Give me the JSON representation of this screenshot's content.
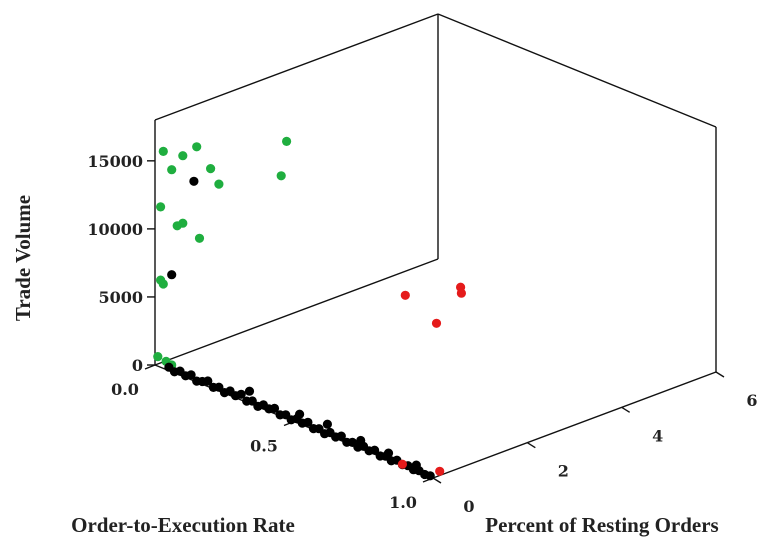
{
  "chart_data": {
    "type": "scatter",
    "title": "",
    "axes": {
      "x": {
        "label": "Order-to-Execution Rate",
        "range": [
          0.0,
          1.0
        ],
        "ticks": [
          "0.0",
          "0.5",
          "1.0"
        ]
      },
      "y": {
        "label": "Percent of Resting Orders",
        "range": [
          0,
          6
        ],
        "ticks": [
          "0",
          "2",
          "4",
          "6"
        ]
      },
      "z": {
        "label": "Trade Volume",
        "range": [
          0,
          18000
        ],
        "ticks": [
          "0",
          "5000",
          "10000",
          "15000"
        ]
      }
    },
    "grid": false,
    "legend": "none",
    "series": [
      {
        "color": "#1fae3f",
        "points": [
          {
            "x": 0.03,
            "y": 0.0,
            "z": 15940
          },
          {
            "x": 0.1,
            "y": 0.0,
            "z": 16210
          },
          {
            "x": 0.06,
            "y": 0.0,
            "z": 14850
          },
          {
            "x": 0.15,
            "y": 0.0,
            "z": 17280
          },
          {
            "x": 0.2,
            "y": 0.0,
            "z": 16090
          },
          {
            "x": 0.23,
            "y": 0.0,
            "z": 15200
          },
          {
            "x": 0.42,
            "y": 0.2,
            "z": 17130
          },
          {
            "x": 0.02,
            "y": 0.0,
            "z": 11780
          },
          {
            "x": 0.1,
            "y": 0.0,
            "z": 11250
          },
          {
            "x": 0.08,
            "y": 0.0,
            "z": 10890
          },
          {
            "x": 0.16,
            "y": 0.0,
            "z": 10640
          },
          {
            "x": 0.02,
            "y": 0.0,
            "z": 6400
          },
          {
            "x": 0.03,
            "y": 0.0,
            "z": 6200
          },
          {
            "x": 0.1,
            "y": 2.2,
            "z": 14400
          },
          {
            "x": 0.01,
            "y": 0.0,
            "z": 700
          },
          {
            "x": 0.04,
            "y": 0.0,
            "z": 600
          },
          {
            "x": 0.06,
            "y": 0.0,
            "z": 500
          }
        ]
      },
      {
        "color": "#000000",
        "points": [
          {
            "x": 0.14,
            "y": 0.0,
            "z": 14660
          },
          {
            "x": 0.06,
            "y": 0.0,
            "z": 7130
          },
          {
            "x": 0.05,
            "y": 0.0,
            "z": 250
          },
          {
            "x": 0.07,
            "y": 0.0,
            "z": 80
          },
          {
            "x": 0.09,
            "y": 0.0,
            "z": 300
          },
          {
            "x": 0.11,
            "y": 0.0,
            "z": 120
          },
          {
            "x": 0.13,
            "y": 0.0,
            "z": 350
          },
          {
            "x": 0.15,
            "y": 0.0,
            "z": 60
          },
          {
            "x": 0.17,
            "y": 0.0,
            "z": 200
          },
          {
            "x": 0.19,
            "y": 0.0,
            "z": 400
          },
          {
            "x": 0.21,
            "y": 0.0,
            "z": 100
          },
          {
            "x": 0.23,
            "y": 0.0,
            "z": 280
          },
          {
            "x": 0.25,
            "y": 0.0,
            "z": 50
          },
          {
            "x": 0.27,
            "y": 0.0,
            "z": 330
          },
          {
            "x": 0.29,
            "y": 0.0,
            "z": 150
          },
          {
            "x": 0.31,
            "y": 0.0,
            "z": 420
          },
          {
            "x": 0.33,
            "y": 0.0,
            "z": 90
          },
          {
            "x": 0.35,
            "y": 0.0,
            "z": 260
          },
          {
            "x": 0.37,
            "y": 0.0,
            "z": 30
          },
          {
            "x": 0.39,
            "y": 0.0,
            "z": 310
          },
          {
            "x": 0.41,
            "y": 0.0,
            "z": 180
          },
          {
            "x": 0.43,
            "y": 0.0,
            "z": 380
          },
          {
            "x": 0.45,
            "y": 0.0,
            "z": 70
          },
          {
            "x": 0.47,
            "y": 0.0,
            "z": 240
          },
          {
            "x": 0.49,
            "y": 0.0,
            "z": 40
          },
          {
            "x": 0.51,
            "y": 0.0,
            "z": 290
          },
          {
            "x": 0.53,
            "y": 0.0,
            "z": 130
          },
          {
            "x": 0.55,
            "y": 0.0,
            "z": 360
          },
          {
            "x": 0.57,
            "y": 0.0,
            "z": 60
          },
          {
            "x": 0.59,
            "y": 0.0,
            "z": 220
          },
          {
            "x": 0.61,
            "y": 0.0,
            "z": 20
          },
          {
            "x": 0.63,
            "y": 0.0,
            "z": 270
          },
          {
            "x": 0.65,
            "y": 0.0,
            "z": 110
          },
          {
            "x": 0.67,
            "y": 0.0,
            "z": 340
          },
          {
            "x": 0.69,
            "y": 0.0,
            "z": 50
          },
          {
            "x": 0.71,
            "y": 0.0,
            "z": 210
          },
          {
            "x": 0.73,
            "y": 0.0,
            "z": 30
          },
          {
            "x": 0.75,
            "y": 0.0,
            "z": 250
          },
          {
            "x": 0.77,
            "y": 0.0,
            "z": 90
          },
          {
            "x": 0.79,
            "y": 0.0,
            "z": 300
          },
          {
            "x": 0.81,
            "y": 0.0,
            "z": 40
          },
          {
            "x": 0.83,
            "y": 0.0,
            "z": 190
          },
          {
            "x": 0.85,
            "y": 0.0,
            "z": 20
          },
          {
            "x": 0.87,
            "y": 0.0,
            "z": 230
          },
          {
            "x": 0.89,
            "y": 0.0,
            "z": 70
          },
          {
            "x": 0.91,
            "y": 0.0,
            "z": 160
          },
          {
            "x": 0.93,
            "y": 0.0,
            "z": 30
          },
          {
            "x": 0.95,
            "y": 0.0,
            "z": 120
          },
          {
            "x": 0.97,
            "y": 0.0,
            "z": 10
          },
          {
            "x": 0.99,
            "y": 0.0,
            "z": 80
          },
          {
            "x": 0.34,
            "y": 0.0,
            "z": 900
          },
          {
            "x": 0.52,
            "y": 0.0,
            "z": 700
          },
          {
            "x": 0.62,
            "y": 0.0,
            "z": 800
          },
          {
            "x": 0.74,
            "y": 0.0,
            "z": 600
          },
          {
            "x": 0.84,
            "y": 0.0,
            "z": 500
          },
          {
            "x": 0.94,
            "y": 0.0,
            "z": 450
          }
        ]
      },
      {
        "color": "#e51b1b",
        "points": [
          {
            "x": 0.2,
            "y": 5.3,
            "z": 500
          },
          {
            "x": 0.22,
            "y": 5.2,
            "z": 350
          },
          {
            "x": 0.12,
            "y": 4.6,
            "z": 150
          },
          {
            "x": 0.3,
            "y": 4.2,
            "z": 100
          },
          {
            "x": 0.89,
            "y": 0.0,
            "z": 100
          },
          {
            "x": 0.99,
            "y": 0.2,
            "z": 150
          }
        ]
      }
    ]
  }
}
